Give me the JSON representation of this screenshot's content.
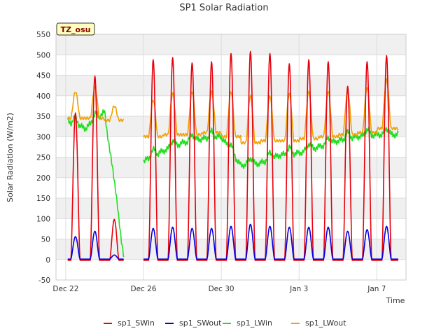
{
  "chart_data": {
    "type": "line",
    "title": "SP1 Solar Radiation",
    "xlabel": "Time",
    "ylabel": "Solar Radiation (W/m2)",
    "site_badge": "TZ_osu",
    "x_unit": "days since Dec 22",
    "xlim": [
      -0.5,
      17.5
    ],
    "ylim": [
      -50,
      550
    ],
    "yticks": [
      -50,
      0,
      50,
      100,
      150,
      200,
      250,
      300,
      350,
      400,
      450,
      500,
      550
    ],
    "xticks": [
      {
        "day": 0,
        "label": "Dec 22"
      },
      {
        "day": 4,
        "label": "Dec 26"
      },
      {
        "day": 8,
        "label": "Dec 30"
      },
      {
        "day": 12,
        "label": "Jan 3"
      },
      {
        "day": 16,
        "label": "Jan 7"
      }
    ],
    "grid": true,
    "legend_position": "bottom",
    "daily_peaks": {
      "days": [
        0,
        1,
        2,
        3,
        4,
        5,
        6,
        7,
        8,
        9,
        10,
        11,
        12,
        13,
        14,
        15,
        16
      ],
      "sp1_SWin_peak": [
        360,
        450,
        100,
        1,
        490,
        495,
        482,
        485,
        505,
        510,
        505,
        480,
        490,
        485,
        425,
        485,
        500
      ],
      "sp1_SWout_peak": [
        55,
        68,
        10,
        1,
        75,
        78,
        75,
        75,
        80,
        85,
        80,
        78,
        78,
        78,
        68,
        72,
        80
      ],
      "sp1_LWout_daytime_peak": [
        410,
        420,
        375,
        1,
        390,
        405,
        410,
        410,
        410,
        400,
        400,
        405,
        410,
        410,
        410,
        420,
        440
      ],
      "sp1_LWout_night_level": [
        345,
        345,
        340,
        1,
        300,
        305,
        305,
        310,
        300,
        285,
        290,
        290,
        295,
        300,
        305,
        310,
        320
      ],
      "sp1_LWin_level": [
        340,
        320,
        360,
        1,
        240,
        265,
        285,
        295,
        300,
        230,
        235,
        255,
        260,
        275,
        290,
        300,
        305
      ]
    },
    "series": [
      {
        "name": "sp1_SWin",
        "color": "#e8000b"
      },
      {
        "name": "sp1_SWout",
        "color": "#0000e0"
      },
      {
        "name": "sp1_LWin",
        "color": "#1ee01e"
      },
      {
        "name": "sp1_LWout",
        "color": "#f0a000"
      }
    ]
  }
}
